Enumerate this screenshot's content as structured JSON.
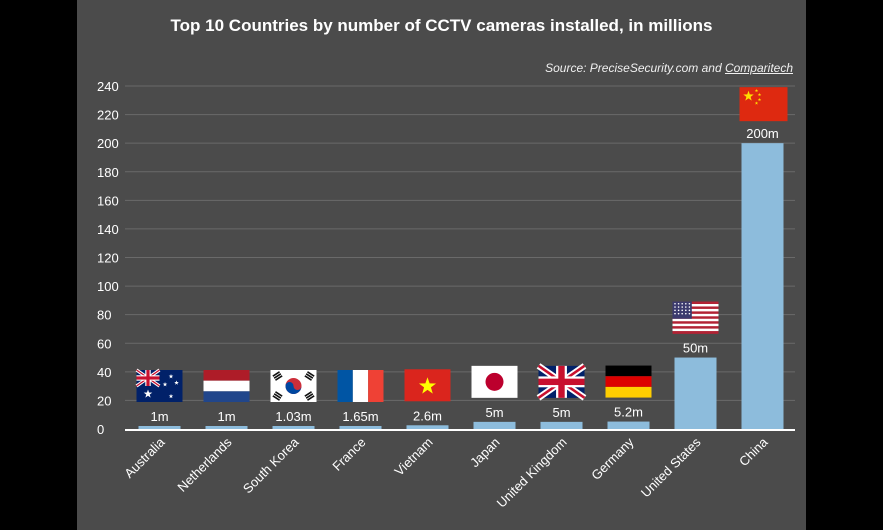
{
  "chart_data": {
    "type": "bar",
    "title": "Top 10 Countries by number of CCTV cameras installed, in millions",
    "source_prefix": "Source: PreciseSecurity.com and ",
    "source_link": "Comparitech",
    "categories": [
      "Australia",
      "Netherlands",
      "South Korea",
      "France",
      "Vietnam",
      "Japan",
      "United Kingdom",
      "Germany",
      "United States",
      "China"
    ],
    "values": [
      1,
      1,
      1.03,
      1.65,
      2.6,
      5,
      5,
      5.2,
      50,
      200
    ],
    "data_labels": [
      "1m",
      "1m",
      "1.03m",
      "1.65m",
      "2.6m",
      "5m",
      "5m",
      "5.2m",
      "50m",
      "200m"
    ],
    "flags": [
      "flag-australia-icon",
      "flag-netherlands-icon",
      "flag-south-korea-icon",
      "flag-france-icon",
      "flag-vietnam-icon",
      "flag-japan-icon",
      "flag-united-kingdom-icon",
      "flag-germany-icon",
      "flag-united-states-icon",
      "flag-china-icon"
    ],
    "yticks": [
      0,
      20,
      40,
      60,
      80,
      100,
      120,
      140,
      160,
      180,
      200,
      220,
      240
    ],
    "ylim": [
      0,
      240
    ],
    "grid": true,
    "xlabel": "",
    "ylabel": "",
    "bar_color": "#8dbcdc",
    "background_color": "#4b4b4b"
  }
}
